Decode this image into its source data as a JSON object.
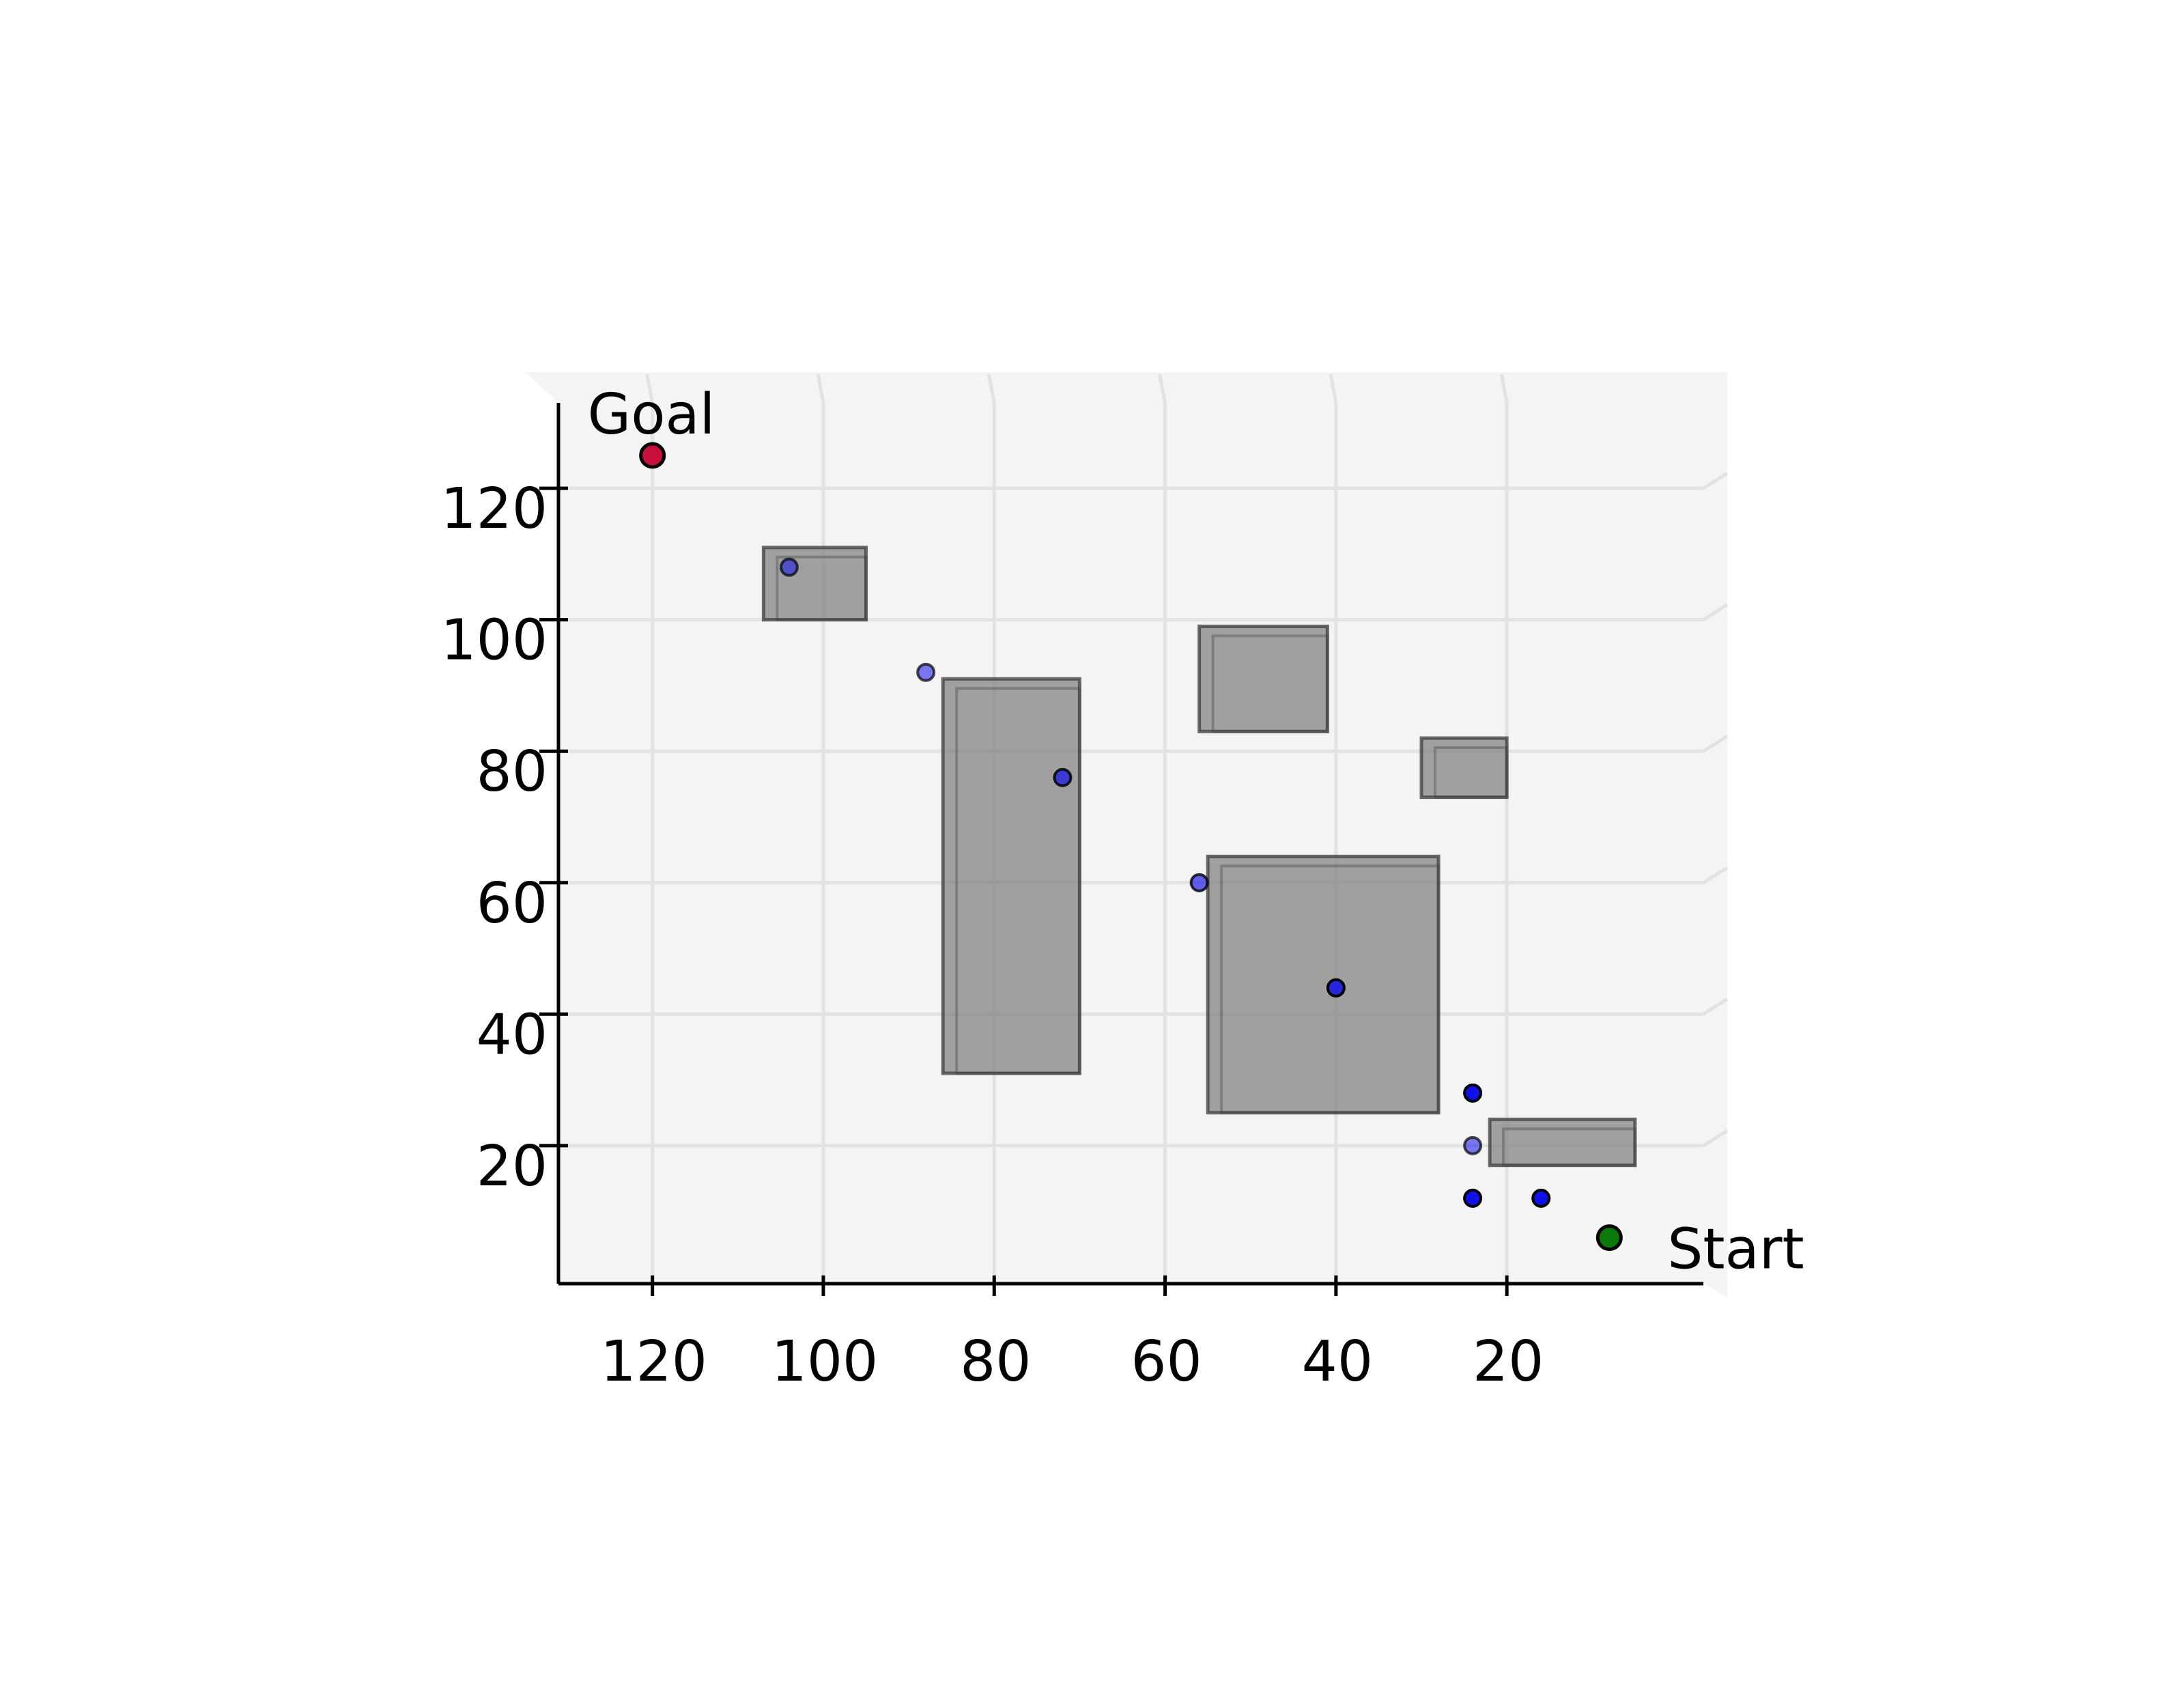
{
  "chart_data": {
    "type": "scatter",
    "view": "top-down projection of a 3D path-planning scene",
    "xlim": [
      131,
      -3
    ],
    "ylim": [
      -1,
      133
    ],
    "x_ticks": [
      120,
      100,
      80,
      60,
      40,
      20
    ],
    "y_ticks": [
      20,
      40,
      60,
      80,
      100,
      120
    ],
    "grid": true,
    "colors": {
      "pane": "#f4f4f4",
      "grid": "#e2e2e2",
      "obstacle_fill": "#808080",
      "obstacle_edge": "#3c3c3c",
      "waypoint": "#1010e8",
      "start": "#0a7a0a",
      "goal": "#c8103c"
    },
    "obstacles": [
      {
        "x": [
          95,
          107
        ],
        "y": [
          100,
          111
        ]
      },
      {
        "x": [
          70,
          86
        ],
        "y": [
          31,
          91
        ]
      },
      {
        "x": [
          41,
          56
        ],
        "y": [
          83,
          99
        ]
      },
      {
        "x": [
          28,
          55
        ],
        "y": [
          25,
          64
        ]
      },
      {
        "x": [
          20,
          30
        ],
        "y": [
          73,
          82
        ]
      },
      {
        "x": [
          5,
          22
        ],
        "y": [
          17,
          24
        ]
      }
    ],
    "waypoints": [
      {
        "x": 104,
        "y": 108,
        "alpha": 0.55
      },
      {
        "x": 88,
        "y": 92,
        "alpha": 0.55
      },
      {
        "x": 72,
        "y": 76,
        "alpha": 0.7
      },
      {
        "x": 56,
        "y": 60,
        "alpha": 0.65
      },
      {
        "x": 40,
        "y": 44,
        "alpha": 0.85
      },
      {
        "x": 24,
        "y": 28,
        "alpha": 1.0
      },
      {
        "x": 24,
        "y": 20,
        "alpha": 0.55
      },
      {
        "x": 24,
        "y": 12,
        "alpha": 1.0
      },
      {
        "x": 16,
        "y": 12,
        "alpha": 1.0
      }
    ],
    "start": {
      "x": 8,
      "y": 6,
      "label": "Start"
    },
    "goal": {
      "x": 120,
      "y": 125,
      "label": "Goal"
    }
  }
}
